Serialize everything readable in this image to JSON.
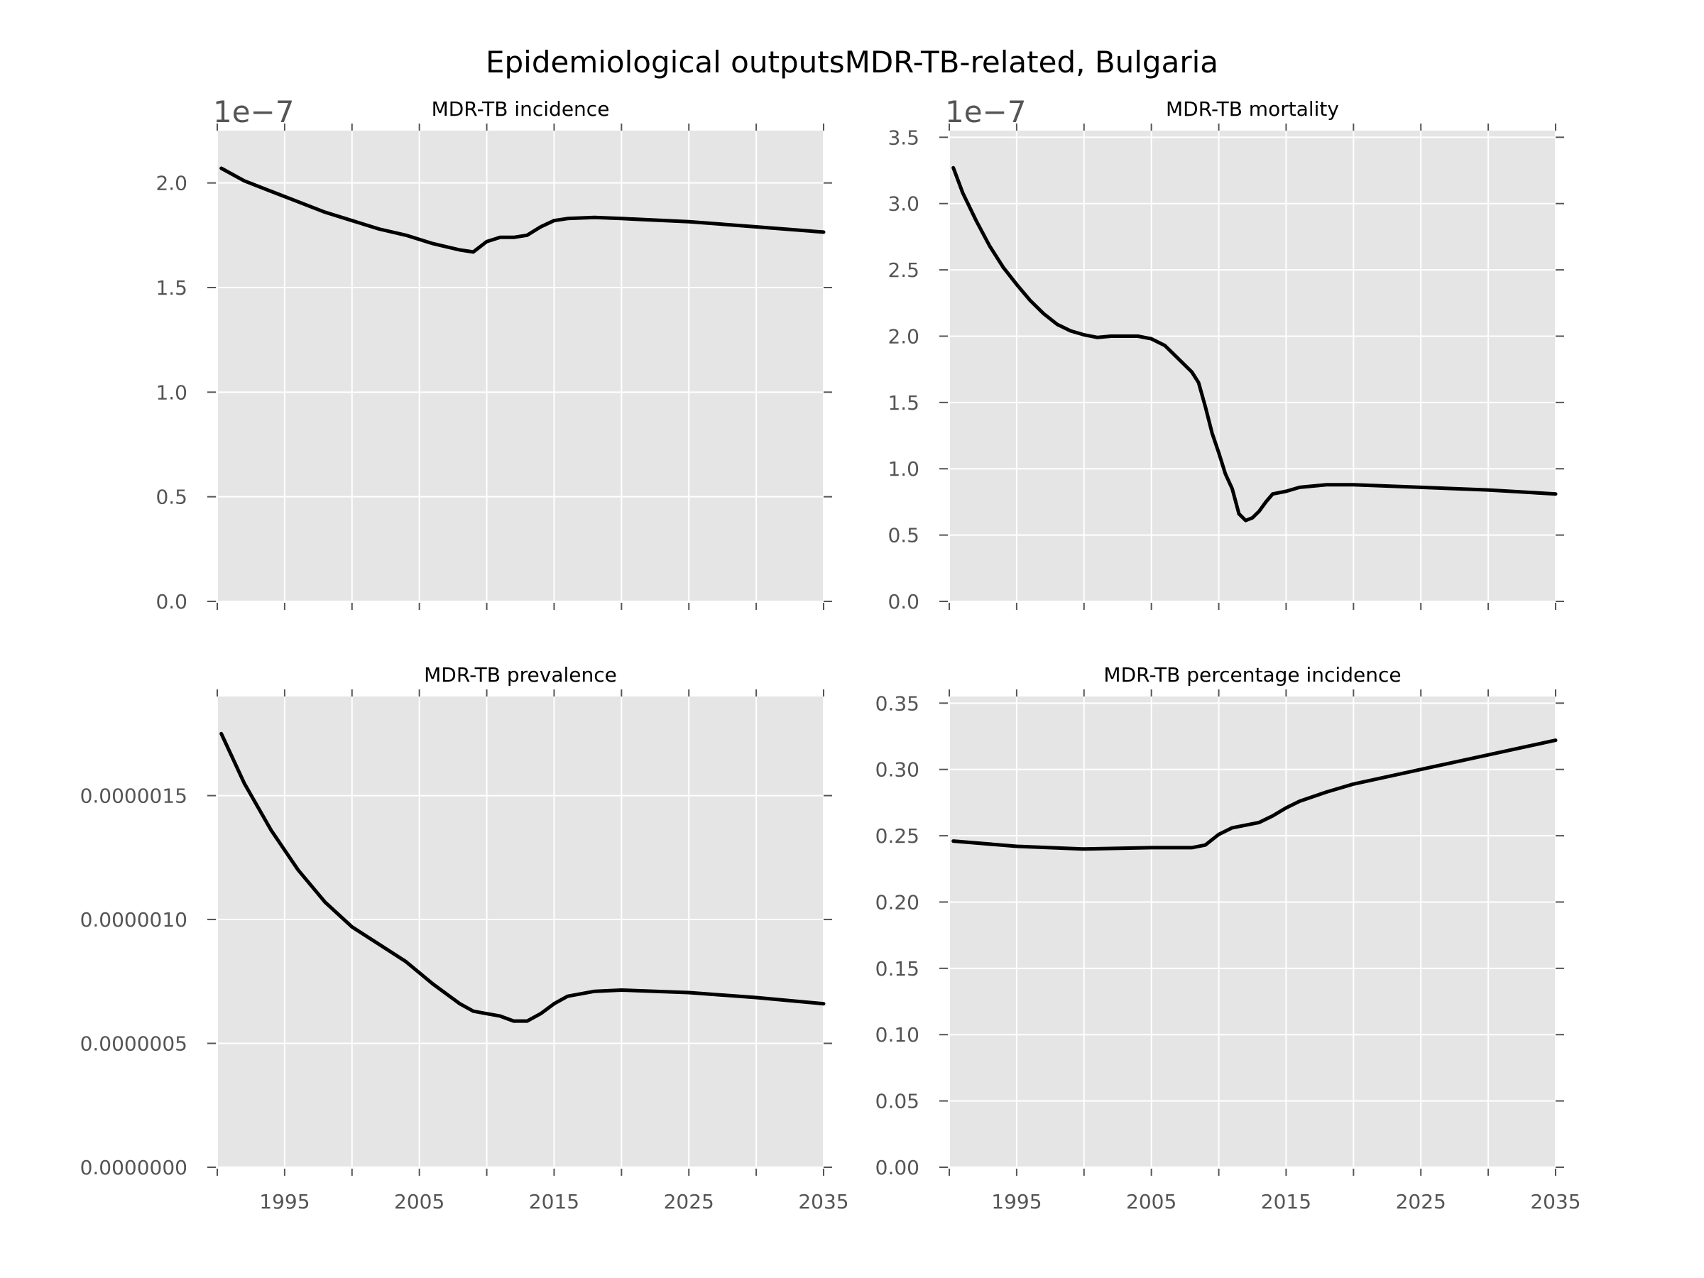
{
  "figure": {
    "title": "Epidemiological outputsMDR-TB-related, Bulgaria",
    "background": "#ffffff",
    "plot_background": "#e5e5e5",
    "grid_color": "#ffffff",
    "line_color": "#000000",
    "tick_color": "#555555"
  },
  "chart_data": [
    {
      "type": "line",
      "title": "MDR-TB incidence",
      "xlabel": "",
      "ylabel": "",
      "offset_label": "1e−7",
      "xlim": [
        1990,
        2035
      ],
      "ylim": [
        0,
        2.25
      ],
      "xticks": [
        1990,
        1995,
        2000,
        2005,
        2010,
        2015,
        2020,
        2025,
        2030,
        2035
      ],
      "xtick_labels": [],
      "yticks": [
        0,
        0.5,
        1.0,
        1.5,
        2.0
      ],
      "ytick_labels": [
        "0.0",
        "0.5",
        "1.0",
        "1.5",
        "2.0"
      ],
      "grid": true,
      "series": [
        {
          "x": [
            1990.3,
            1992,
            1994,
            1996,
            1998,
            2000,
            2002,
            2004,
            2006,
            2008,
            2009,
            2010,
            2011,
            2012,
            2013,
            2014,
            2015,
            2016,
            2018,
            2020,
            2025,
            2030,
            2035
          ],
          "y": [
            2.07,
            2.01,
            1.96,
            1.91,
            1.86,
            1.82,
            1.78,
            1.75,
            1.71,
            1.68,
            1.67,
            1.72,
            1.74,
            1.74,
            1.75,
            1.79,
            1.82,
            1.83,
            1.835,
            1.83,
            1.815,
            1.79,
            1.765
          ]
        }
      ]
    },
    {
      "type": "line",
      "title": "MDR-TB mortality",
      "xlabel": "",
      "ylabel": "",
      "offset_label": "1e−7",
      "xlim": [
        1990,
        2035
      ],
      "ylim": [
        0,
        3.55
      ],
      "xticks": [
        1990,
        1995,
        2000,
        2005,
        2010,
        2015,
        2020,
        2025,
        2030,
        2035
      ],
      "xtick_labels": [],
      "yticks": [
        0,
        0.5,
        1.0,
        1.5,
        2.0,
        2.5,
        3.0,
        3.5
      ],
      "ytick_labels": [
        "0.0",
        "0.5",
        "1.0",
        "1.5",
        "2.0",
        "2.5",
        "3.0",
        "3.5"
      ],
      "grid": true,
      "series": [
        {
          "x": [
            1990.3,
            1991,
            1992,
            1993,
            1994,
            1995,
            1996,
            1997,
            1998,
            1999,
            2000,
            2001,
            2002,
            2003,
            2004,
            2005,
            2006,
            2007,
            2008,
            2008.5,
            2009,
            2009.5,
            2010,
            2010.5,
            2011,
            2011.5,
            2012,
            2012.5,
            2013,
            2013.5,
            2014,
            2015,
            2016,
            2018,
            2020,
            2025,
            2030,
            2035
          ],
          "y": [
            3.27,
            3.08,
            2.87,
            2.68,
            2.52,
            2.39,
            2.27,
            2.17,
            2.09,
            2.04,
            2.01,
            1.99,
            2.0,
            2.0,
            2.0,
            1.98,
            1.93,
            1.83,
            1.73,
            1.65,
            1.47,
            1.27,
            1.12,
            0.96,
            0.85,
            0.66,
            0.61,
            0.63,
            0.68,
            0.75,
            0.81,
            0.83,
            0.86,
            0.88,
            0.88,
            0.86,
            0.84,
            0.81
          ]
        }
      ]
    },
    {
      "type": "line",
      "title": "MDR-TB prevalence",
      "xlabel": "",
      "ylabel": "",
      "xlim": [
        1990,
        2035
      ],
      "ylim": [
        0,
        1.9e-06
      ],
      "xticks": [
        1990,
        1995,
        2000,
        2005,
        2010,
        2015,
        2020,
        2025,
        2030,
        2035
      ],
      "xtick_labels": [
        "",
        "1995",
        "",
        "2005",
        "",
        "2015",
        "",
        "2025",
        "",
        "2035"
      ],
      "yticks": [
        0,
        5e-07,
        1e-06,
        1.5e-06
      ],
      "ytick_labels": [
        "0.0000000",
        "0.0000005",
        "0.0000010",
        "0.0000015"
      ],
      "grid": true,
      "series": [
        {
          "x": [
            1990.3,
            1992,
            1994,
            1996,
            1998,
            2000,
            2002,
            2004,
            2006,
            2008,
            2009,
            2010,
            2011,
            2012,
            2013,
            2014,
            2015,
            2016,
            2018,
            2020,
            2025,
            2030,
            2035
          ],
          "y": [
            1.75e-06,
            1.55e-06,
            1.36e-06,
            1.2e-06,
            1.07e-06,
            9.7e-07,
            9e-07,
            8.3e-07,
            7.4e-07,
            6.6e-07,
            6.3e-07,
            6.2e-07,
            6.1e-07,
            5.9e-07,
            5.9e-07,
            6.2e-07,
            6.6e-07,
            6.9e-07,
            7.1e-07,
            7.15e-07,
            7.05e-07,
            6.85e-07,
            6.6e-07
          ]
        }
      ]
    },
    {
      "type": "line",
      "title": "MDR-TB percentage incidence",
      "xlabel": "",
      "ylabel": "",
      "xlim": [
        1990,
        2035
      ],
      "ylim": [
        0,
        0.355
      ],
      "xticks": [
        1990,
        1995,
        2000,
        2005,
        2010,
        2015,
        2020,
        2025,
        2030,
        2035
      ],
      "xtick_labels": [
        "",
        "1995",
        "",
        "2005",
        "",
        "2015",
        "",
        "2025",
        "",
        "2035"
      ],
      "yticks": [
        0,
        0.05,
        0.1,
        0.15,
        0.2,
        0.25,
        0.3,
        0.35
      ],
      "ytick_labels": [
        "0.00",
        "0.05",
        "0.10",
        "0.15",
        "0.20",
        "0.25",
        "0.30",
        "0.35"
      ],
      "grid": true,
      "series": [
        {
          "x": [
            1990.3,
            1995,
            2000,
            2005,
            2008,
            2009,
            2010,
            2011,
            2012,
            2013,
            2014,
            2015,
            2016,
            2018,
            2020,
            2025,
            2030,
            2035
          ],
          "y": [
            0.246,
            0.242,
            0.24,
            0.241,
            0.241,
            0.243,
            0.251,
            0.256,
            0.258,
            0.26,
            0.265,
            0.271,
            0.276,
            0.283,
            0.289,
            0.3,
            0.311,
            0.322
          ]
        }
      ]
    }
  ]
}
